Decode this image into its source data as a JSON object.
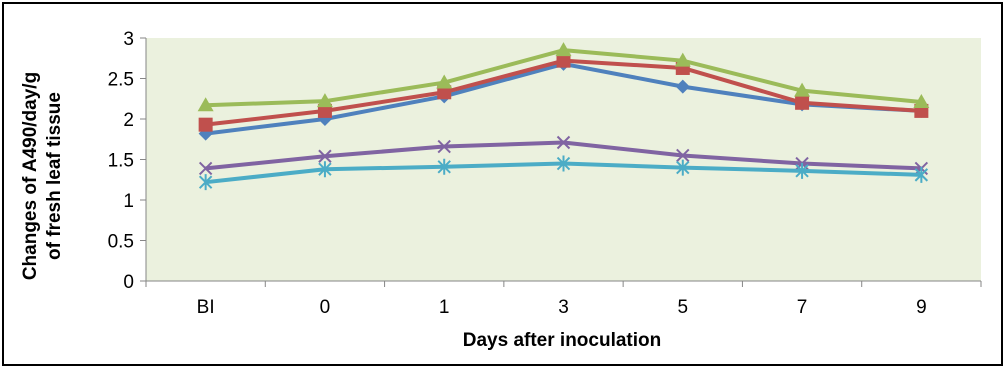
{
  "chart_data": {
    "type": "line",
    "xlabel": "Days after inoculation",
    "ylabel_lines": [
      "Changes of A490/day/g",
      "of fresh leaf tissue"
    ],
    "categories": [
      "BI",
      "0",
      "1",
      "3",
      "5",
      "7",
      "9"
    ],
    "ylim": [
      0,
      3
    ],
    "yticks": [
      "0",
      "0.5",
      "1",
      "1.5",
      "2",
      "2.5",
      "3"
    ],
    "grid": false,
    "legend": "none",
    "plot_background": "#ebf1de",
    "series": [
      {
        "marker": "diamond",
        "color": "#4f81bd",
        "values": [
          1.82,
          2.0,
          2.28,
          2.68,
          2.4,
          2.18,
          2.1
        ]
      },
      {
        "marker": "square",
        "color": "#c0504d",
        "values": [
          1.93,
          2.1,
          2.33,
          2.72,
          2.63,
          2.2,
          2.1
        ]
      },
      {
        "marker": "triangle",
        "color": "#9bbb59",
        "values": [
          2.17,
          2.22,
          2.45,
          2.85,
          2.72,
          2.35,
          2.21
        ]
      },
      {
        "marker": "x",
        "color": "#8064a2",
        "values": [
          1.39,
          1.54,
          1.66,
          1.71,
          1.55,
          1.45,
          1.39
        ]
      },
      {
        "marker": "star",
        "color": "#4bacc6",
        "values": [
          1.22,
          1.38,
          1.41,
          1.45,
          1.4,
          1.36,
          1.31
        ]
      }
    ]
  }
}
